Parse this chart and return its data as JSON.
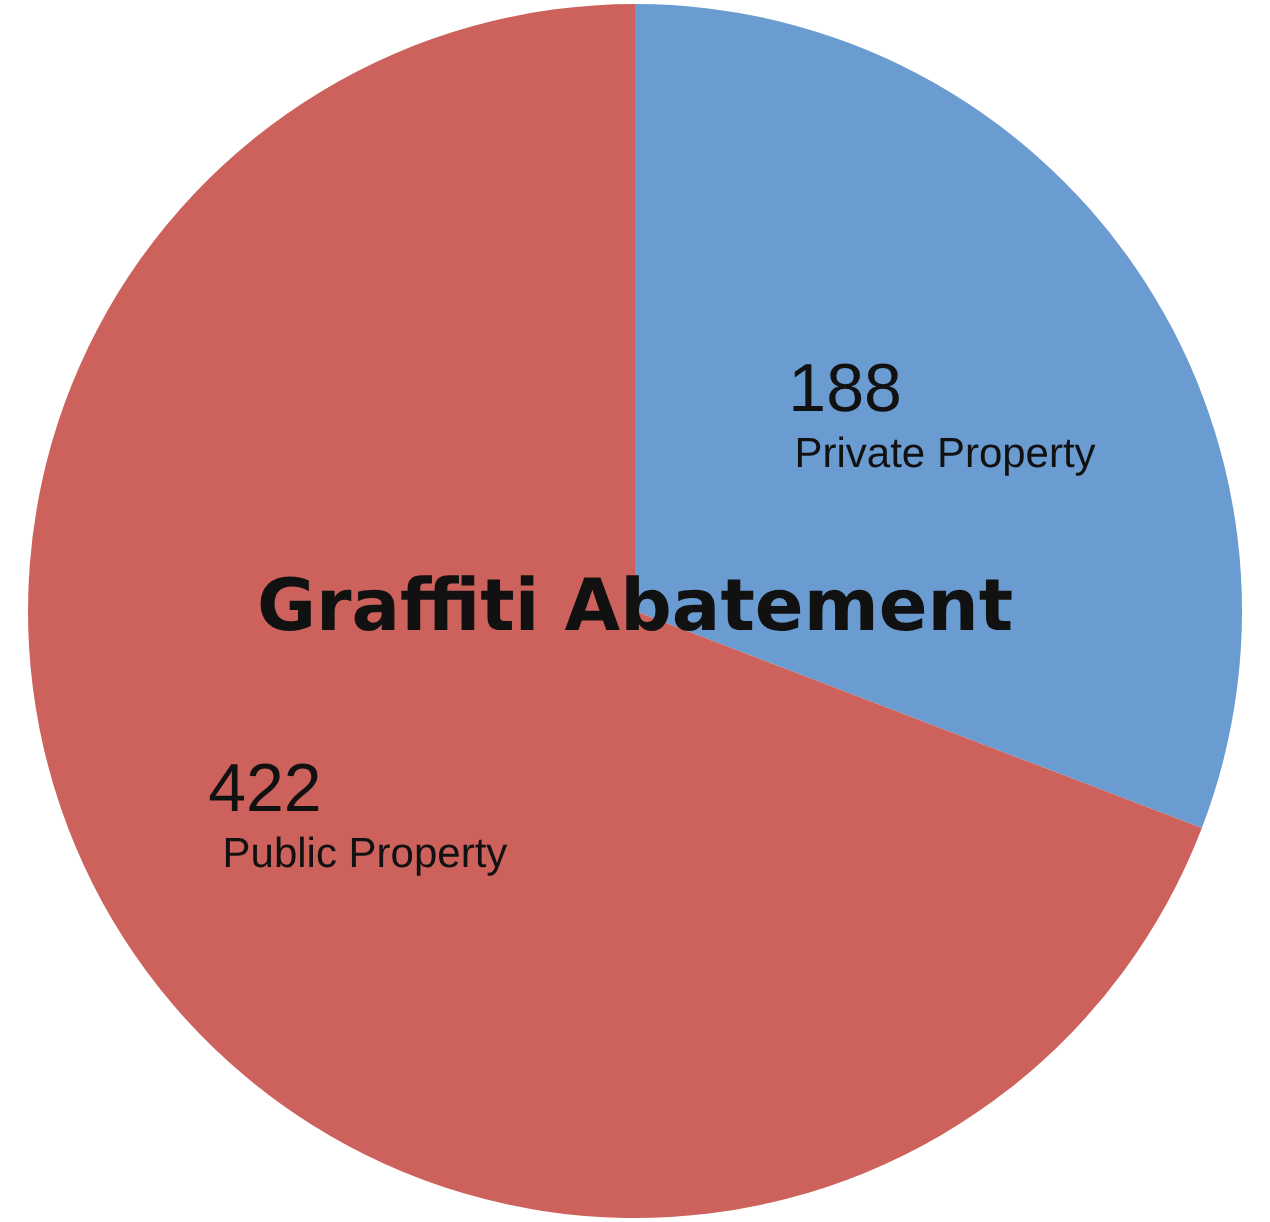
{
  "chart_data": {
    "type": "pie",
    "title": "Graffiti Abatement",
    "categories": [
      "Private Property",
      "Public Property"
    ],
    "values": [
      188,
      422
    ],
    "colors": [
      "#6a9bd1",
      "#cd625c"
    ],
    "data_labels": true,
    "legend": false
  }
}
